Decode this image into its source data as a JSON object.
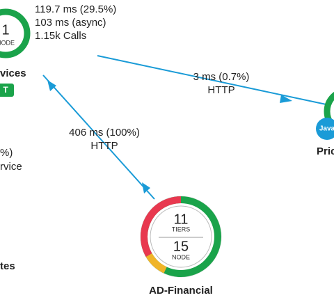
{
  "nodes": [
    {
      "count": "1",
      "unit": "NODE",
      "label": "vices",
      "badge": "T"
    },
    {
      "badge": "Java",
      "label": "Pric"
    },
    {
      "tiers": "11",
      "tiers_unit": "TIERS",
      "count": "15",
      "unit": "NODE",
      "label": "AD-Financial"
    }
  ],
  "node_stats": [
    "119.7 ms (29.5%)",
    "103 ms (async)",
    "1.15k Calls"
  ],
  "edges": [
    {
      "time": "3 ms (0.7%)",
      "protocol": "HTTP"
    },
    {
      "time": "406 ms (100%)",
      "protocol": "HTTP"
    }
  ],
  "cropped_texts": [
    "%)",
    "rvice",
    "tes"
  ]
}
